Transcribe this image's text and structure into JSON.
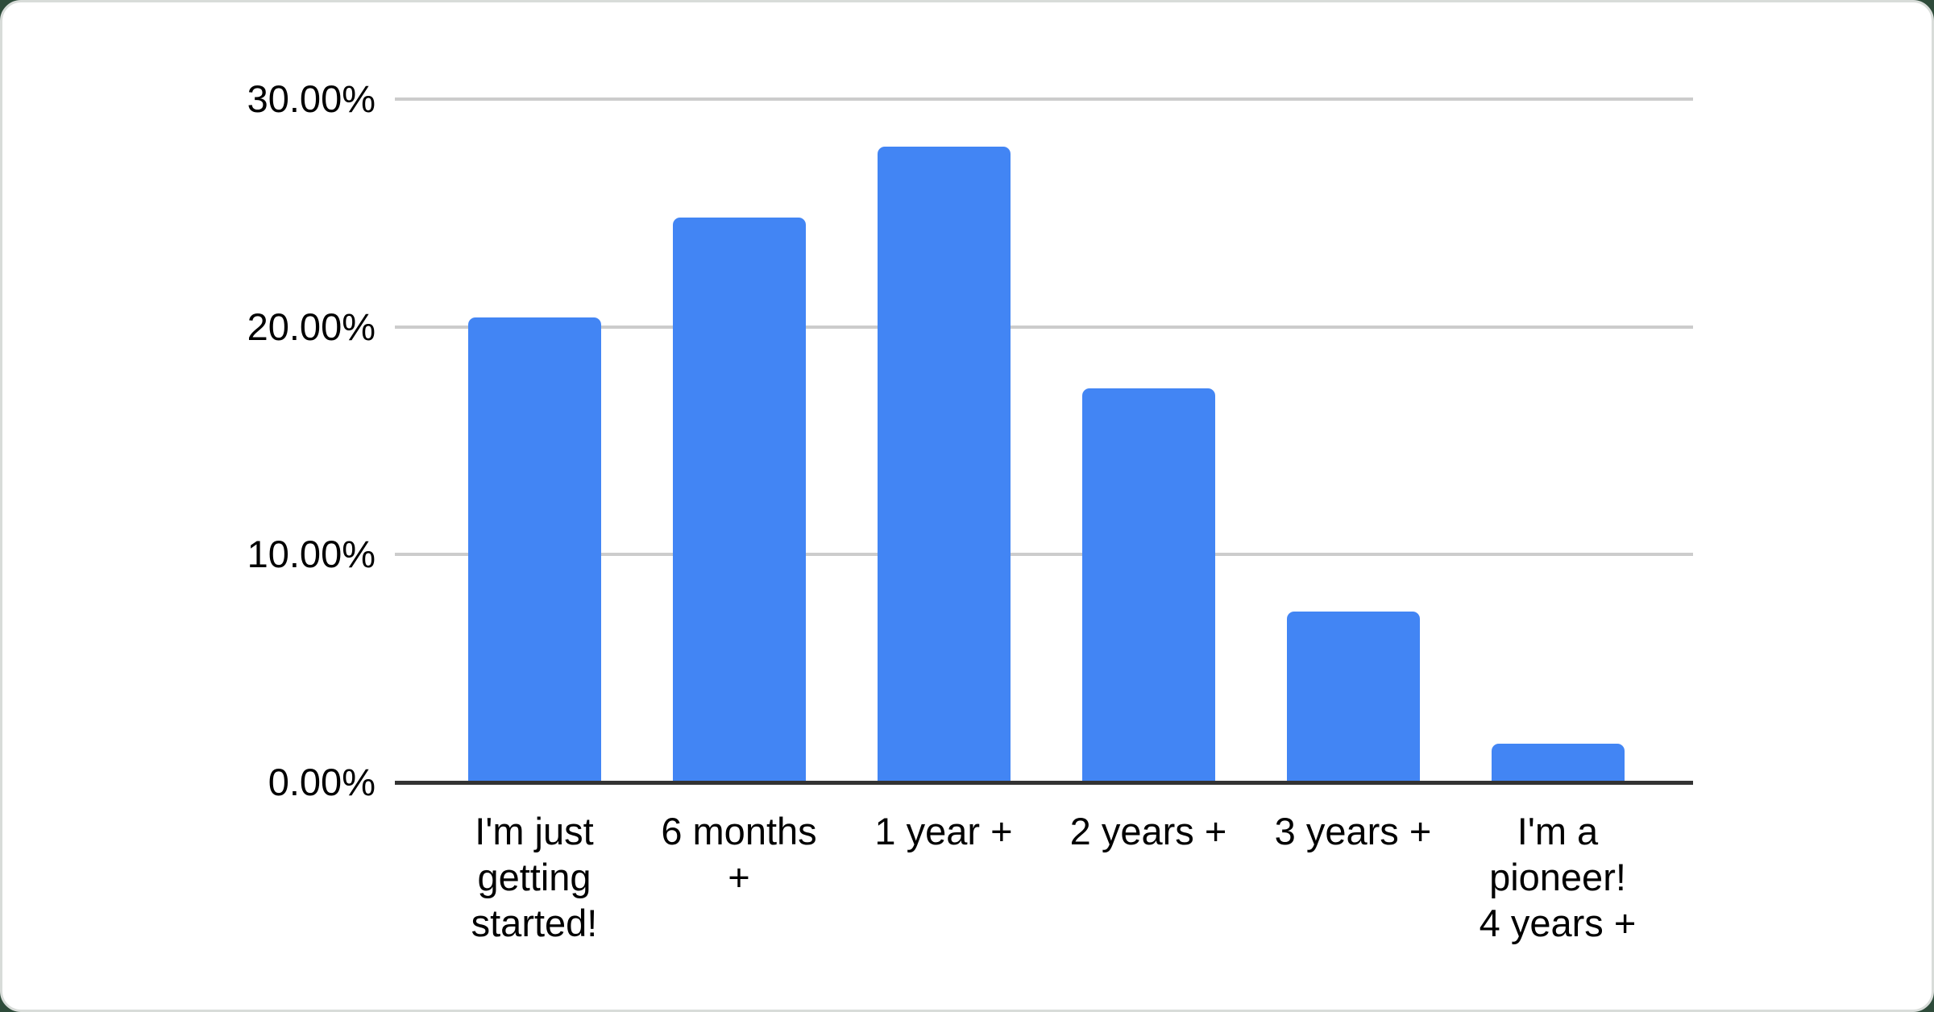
{
  "page": {
    "background_color": "#2e4b3a",
    "card_background": "#ffffff",
    "card_border_color": "#d8dcd9"
  },
  "chart_data": {
    "type": "bar",
    "title": "",
    "xlabel": "",
    "ylabel": "",
    "categories": [
      "I'm just getting started!",
      "6 months +",
      "1 year +",
      "2 years +",
      "3 years +",
      "I'm a pioneer! 4 years +"
    ],
    "category_label_lines": [
      [
        "I'm just",
        "getting",
        "started!"
      ],
      [
        "6 months",
        "+"
      ],
      [
        "1 year +"
      ],
      [
        "2 years +"
      ],
      [
        "3 years +"
      ],
      [
        "I'm a",
        "pioneer!",
        "4 years +"
      ]
    ],
    "values": [
      20.4,
      24.8,
      27.9,
      17.3,
      7.5,
      1.7
    ],
    "unit": "%",
    "ylim": [
      0,
      30
    ],
    "y_ticks": [
      {
        "value": 30,
        "label": "30.00%"
      },
      {
        "value": 20,
        "label": "20.00%"
      },
      {
        "value": 10,
        "label": "10.00%"
      },
      {
        "value": 0,
        "label": "0.00%"
      }
    ],
    "grid": true,
    "legend_position": "none",
    "bar_color": "#4285f4",
    "gridline_color": "#cccccc",
    "axis_line_color": "#333333",
    "label_color": "#000000"
  }
}
